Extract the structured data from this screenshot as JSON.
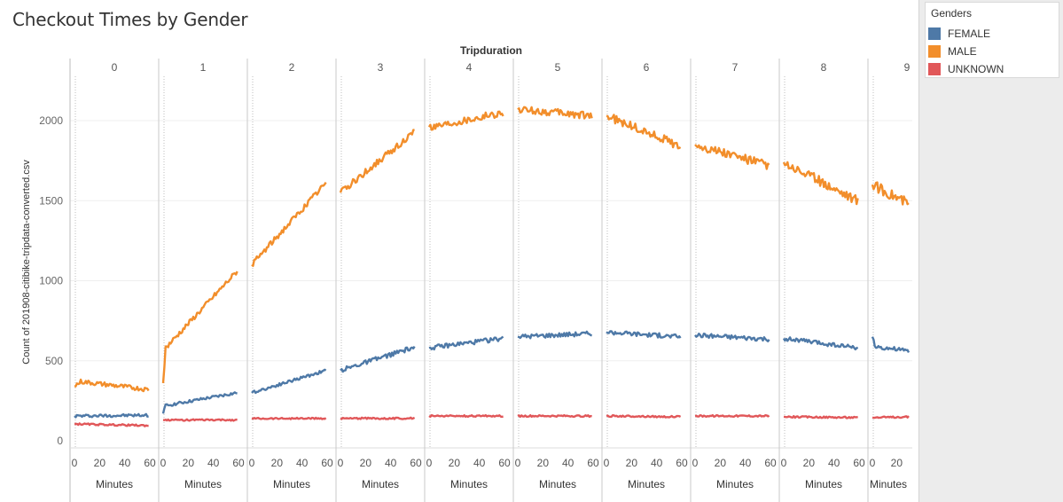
{
  "chart_data": {
    "type": "line",
    "title": "Checkout Times by Gender",
    "column_header": "Tripduration",
    "ylabel": "Count of 201908-citibike-tripdata-converted.csv",
    "xlabel": "Minutes",
    "ylim": [
      0,
      2400
    ],
    "yticks": [
      "0",
      "500",
      "1000",
      "1500",
      "2000"
    ],
    "xticks": [
      "0",
      "20",
      "40",
      "60"
    ],
    "last_panel_xticks": [
      "0",
      "20"
    ],
    "grid": true,
    "legend_position": "right",
    "panels": [
      {
        "label": "0",
        "x_range": [
          0,
          59
        ],
        "series": {
          "FEMALE": [
            [
              0,
              155
            ],
            [
              59,
              160
            ]
          ],
          "MALE": [
            [
              0,
              340
            ],
            [
              5,
              370
            ],
            [
              59,
              320
            ]
          ],
          "UNKNOWN": [
            [
              0,
              105
            ],
            [
              59,
              95
            ]
          ]
        }
      },
      {
        "label": "1",
        "x_range": [
          0,
          59
        ],
        "series": {
          "FEMALE": [
            [
              0,
              170
            ],
            [
              2,
              220
            ],
            [
              59,
              300
            ]
          ],
          "MALE": [
            [
              0,
              360
            ],
            [
              2,
              580
            ],
            [
              59,
              1060
            ]
          ],
          "UNKNOWN": [
            [
              0,
              130
            ],
            [
              59,
              130
            ]
          ]
        }
      },
      {
        "label": "2",
        "x_range": [
          0,
          59
        ],
        "series": {
          "FEMALE": [
            [
              0,
              300
            ],
            [
              59,
              440
            ]
          ],
          "MALE": [
            [
              0,
              1100
            ],
            [
              59,
              1610
            ]
          ],
          "UNKNOWN": [
            [
              0,
              140
            ],
            [
              59,
              140
            ]
          ]
        }
      },
      {
        "label": "3",
        "x_range": [
          0,
          59
        ],
        "series": {
          "FEMALE": [
            [
              0,
              440
            ],
            [
              59,
              585
            ]
          ],
          "MALE": [
            [
              0,
              1550
            ],
            [
              59,
              1930
            ]
          ],
          "UNKNOWN": [
            [
              0,
              140
            ],
            [
              59,
              140
            ]
          ]
        }
      },
      {
        "label": "4",
        "x_range": [
          0,
          59
        ],
        "series": {
          "FEMALE": [
            [
              0,
              580
            ],
            [
              59,
              640
            ]
          ],
          "MALE": [
            [
              0,
              1960
            ],
            [
              59,
              2050
            ]
          ],
          "UNKNOWN": [
            [
              0,
              155
            ],
            [
              59,
              155
            ]
          ]
        }
      },
      {
        "label": "5",
        "x_range": [
          0,
          59
        ],
        "series": {
          "FEMALE": [
            [
              0,
              650
            ],
            [
              59,
              670
            ]
          ],
          "MALE": [
            [
              0,
              2070
            ],
            [
              59,
              2030
            ]
          ],
          "UNKNOWN": [
            [
              0,
              155
            ],
            [
              59,
              155
            ]
          ]
        }
      },
      {
        "label": "6",
        "x_range": [
          0,
          59
        ],
        "series": {
          "FEMALE": [
            [
              0,
              680
            ],
            [
              59,
              650
            ]
          ],
          "MALE": [
            [
              0,
              2030
            ],
            [
              59,
              1840
            ]
          ],
          "UNKNOWN": [
            [
              0,
              155
            ],
            [
              59,
              150
            ]
          ]
        }
      },
      {
        "label": "7",
        "x_range": [
          0,
          59
        ],
        "series": {
          "FEMALE": [
            [
              0,
              660
            ],
            [
              59,
              635
            ]
          ],
          "MALE": [
            [
              0,
              1850
            ],
            [
              59,
              1720
            ]
          ],
          "UNKNOWN": [
            [
              0,
              155
            ],
            [
              59,
              155
            ]
          ]
        }
      },
      {
        "label": "8",
        "x_range": [
          0,
          59
        ],
        "series": {
          "FEMALE": [
            [
              0,
              640
            ],
            [
              59,
              580
            ]
          ],
          "MALE": [
            [
              0,
              1740
            ],
            [
              59,
              1500
            ]
          ],
          "UNKNOWN": [
            [
              0,
              150
            ],
            [
              59,
              145
            ]
          ]
        }
      },
      {
        "label": "9",
        "x_range": [
          0,
          30
        ],
        "series": {
          "FEMALE": [
            [
              0,
              650
            ],
            [
              2,
              590
            ],
            [
              30,
              560
            ]
          ],
          "MALE": [
            [
              0,
              1600
            ],
            [
              30,
              1480
            ]
          ],
          "UNKNOWN": [
            [
              0,
              145
            ],
            [
              30,
              150
            ]
          ]
        }
      }
    ],
    "legend": {
      "title": "Genders",
      "items": [
        {
          "name": "FEMALE",
          "color": "#4e79a7"
        },
        {
          "name": "MALE",
          "color": "#f28e2b"
        },
        {
          "name": "UNKNOWN",
          "color": "#e15759"
        }
      ]
    }
  }
}
